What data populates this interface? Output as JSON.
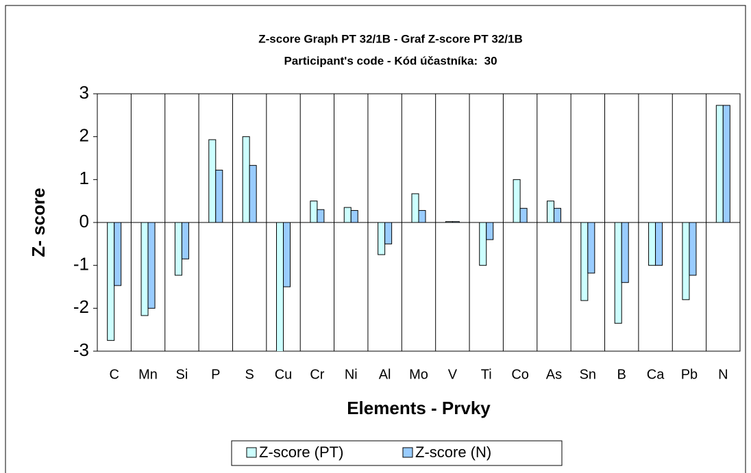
{
  "chart_data": {
    "type": "bar",
    "title": "Z-score Graph PT 32/1B - Graf Z-score PT 32/1B",
    "subtitle": "Participant's code - Kód účastníka:  30",
    "x_label": "Elements - Prvky",
    "y_label": "Z- score",
    "categories": [
      "C",
      "Mn",
      "Si",
      "P",
      "S",
      "Cu",
      "Cr",
      "Ni",
      "Al",
      "Mo",
      "V",
      "Ti",
      "Co",
      "As",
      "Sn",
      "B",
      "Ca",
      "Pb",
      "N"
    ],
    "series": [
      {
        "name": "Z-score (PT)",
        "color": "#ccffff",
        "values": [
          -2.75,
          -2.17,
          -1.23,
          1.93,
          2.0,
          -3.1,
          0.5,
          0.35,
          -0.75,
          0.67,
          0.02,
          -1.0,
          1.0,
          0.5,
          -1.82,
          -2.35,
          -1.0,
          -1.8,
          2.73
        ]
      },
      {
        "name": "Z-score (N)",
        "color": "#99ccff",
        "values": [
          -1.47,
          -2.0,
          -0.85,
          1.22,
          1.33,
          -1.5,
          0.3,
          0.28,
          -0.5,
          0.28,
          0.02,
          -0.4,
          0.33,
          0.33,
          -1.18,
          -1.4,
          -1.0,
          -1.23,
          2.73
        ]
      }
    ],
    "ylim": [
      -3,
      3
    ],
    "yticks": [
      -3,
      -2,
      -1,
      0,
      1,
      2,
      3
    ],
    "grid": true,
    "legend": "bottom"
  }
}
